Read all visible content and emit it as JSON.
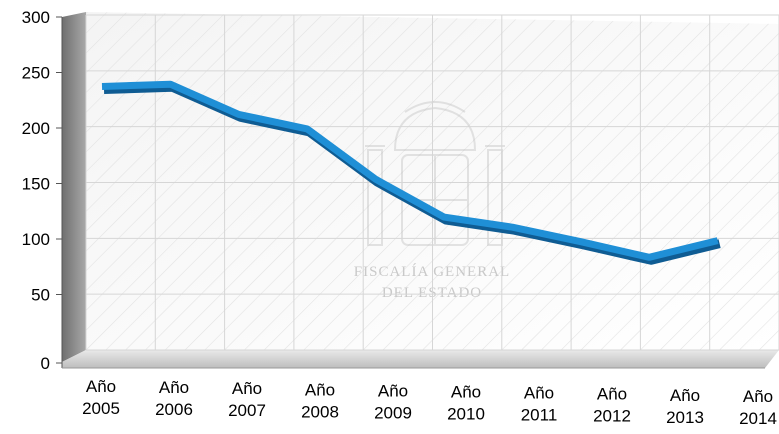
{
  "chart_data": {
    "type": "line",
    "style": "3d",
    "categories": [
      [
        "Año",
        "2005"
      ],
      [
        "Año",
        "2006"
      ],
      [
        "Año",
        "2007"
      ],
      [
        "Año",
        "2008"
      ],
      [
        "Año",
        "2009"
      ],
      [
        "Año",
        "2010"
      ],
      [
        "Año",
        "2011"
      ],
      [
        "Año",
        "2012"
      ],
      [
        "Año",
        "2013"
      ],
      [
        "Año",
        "2014"
      ]
    ],
    "values": [
      236,
      238,
      211,
      198,
      153,
      119,
      110,
      97,
      83,
      98
    ],
    "ylim": [
      0,
      300
    ],
    "yticks": [
      0,
      50,
      100,
      150,
      200,
      250,
      300
    ],
    "grid": true,
    "legend": "none",
    "line_color": "#1f8fd6",
    "line_shadow_color": "#0f5c93"
  },
  "watermark": {
    "line1": "FISCALÍA GENERAL",
    "line2": "DEL ESTADO",
    "emblem": "coat-of-arms-of-spain-icon"
  }
}
